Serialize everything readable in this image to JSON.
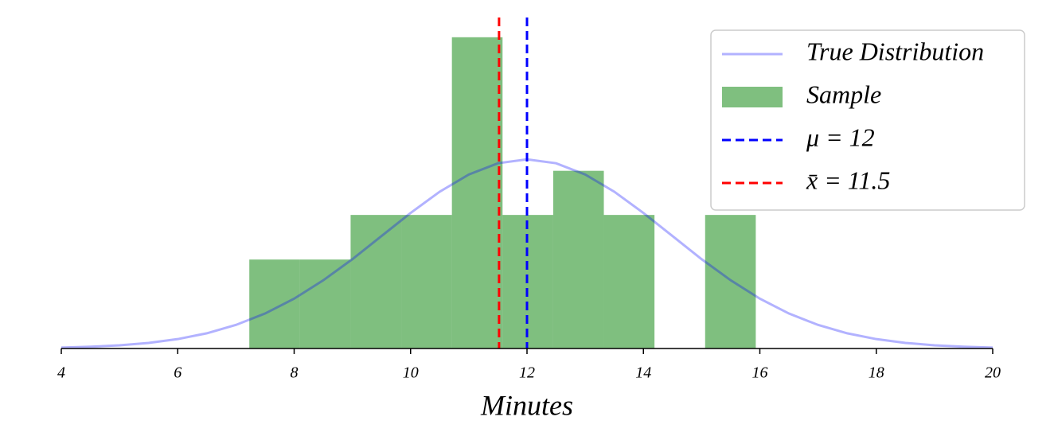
{
  "chart_data": {
    "type": "histogram",
    "name": "Sample",
    "color": "#008000",
    "bins": [
      7.23,
      8.1,
      8.97,
      9.84,
      10.71,
      11.58,
      12.45,
      13.32,
      14.19,
      15.06,
      15.93
    ],
    "values": [
      0.0766,
      0.0766,
      0.115,
      0.115,
      0.268,
      0.115,
      0.153,
      0.115,
      0,
      0.115
    ],
    "curve": {
      "name": "True Distribution",
      "color": "#0000ff",
      "x": [
        4,
        4.5,
        5,
        5.5,
        6,
        6.5,
        7,
        7.5,
        8,
        8.5,
        9,
        9.5,
        10,
        10.5,
        11,
        11.5,
        12,
        12.5,
        13,
        13.5,
        14,
        14.5,
        15,
        15.5,
        16,
        16.5,
        17,
        17.5,
        18,
        18.5,
        19,
        19.5,
        20
      ],
      "values": [
        0.00079,
        0.0015,
        0.00275,
        0.00482,
        0.00811,
        0.0131,
        0.0203,
        0.0301,
        0.0429,
        0.0587,
        0.0769,
        0.0968,
        0.1167,
        0.135,
        0.1498,
        0.1595,
        0.1629,
        0.1595,
        0.1498,
        0.135,
        0.1167,
        0.0968,
        0.0769,
        0.0587,
        0.0429,
        0.0301,
        0.0203,
        0.0131,
        0.00811,
        0.00482,
        0.00275,
        0.0015,
        0.00079
      ]
    },
    "vlines": [
      {
        "value": 12,
        "label": "μ = 12",
        "color": "#0000ff"
      },
      {
        "value": 11.52,
        "label": "x̄ = 11.5",
        "color": "#ff0000"
      }
    ],
    "xlabel": "Minutes",
    "xlim": [
      4,
      20
    ],
    "xticks": [
      4,
      6,
      8,
      10,
      12,
      14,
      16,
      18,
      20
    ],
    "ylim": [
      0,
      0.285
    ],
    "legend": "upper right"
  }
}
